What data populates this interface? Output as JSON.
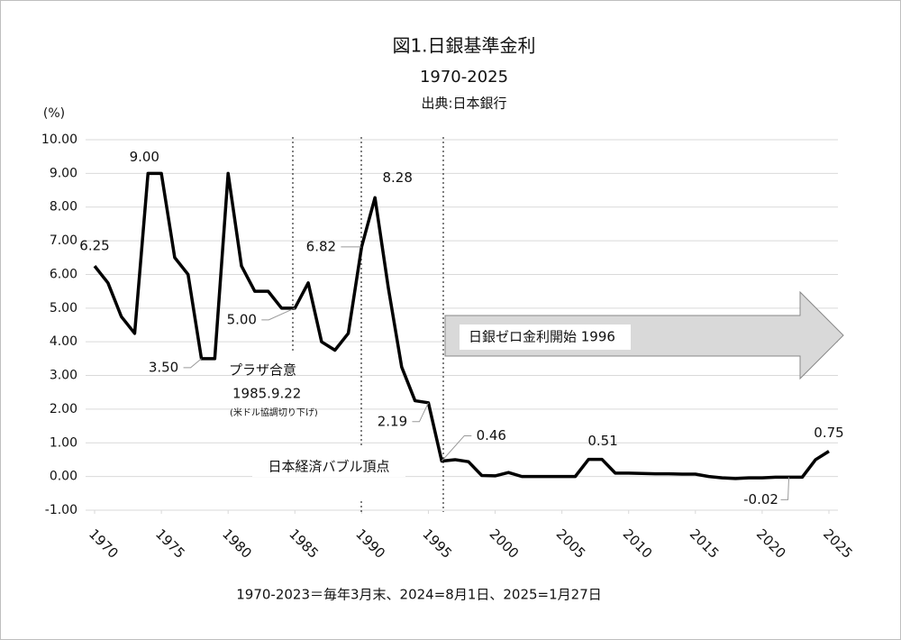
{
  "chart_data": {
    "type": "line",
    "title": "図1.日銀基準金利",
    "subtitle": "1970-2025",
    "source": "出典:日本銀行",
    "y_label": "(%)",
    "footnote": "1970-2023＝毎年3月末、2024=8月1日、2025=1月27日",
    "annotations": [
      "プラザ合意",
      "1985.9.22",
      "(米ドル協調切り下げ)",
      "日本経済バブル頂点",
      "日銀ゼロ金利開始 1996"
    ],
    "x": [
      1970,
      1971,
      1972,
      1973,
      1974,
      1975,
      1976,
      1977,
      1978,
      1979,
      1980,
      1981,
      1982,
      1983,
      1984,
      1985,
      1986,
      1987,
      1988,
      1989,
      1990,
      1991,
      1992,
      1993,
      1994,
      1995,
      1996,
      1997,
      1998,
      1999,
      2000,
      2001,
      2002,
      2003,
      2004,
      2005,
      2006,
      2007,
      2008,
      2009,
      2010,
      2011,
      2012,
      2013,
      2014,
      2015,
      2016,
      2017,
      2018,
      2019,
      2020,
      2021,
      2022,
      2023,
      2024,
      2025
    ],
    "series": [
      {
        "name": "日銀基準金利",
        "color": "#000000",
        "values": [
          6.25,
          5.75,
          4.75,
          4.25,
          9,
          9,
          6.5,
          6,
          3.5,
          3.5,
          9,
          6.25,
          5.5,
          5.5,
          5,
          5,
          5.75,
          4,
          3.75,
          4.25,
          6.82,
          8.28,
          5.6,
          3.25,
          2.25,
          2.19,
          0.46,
          0.5,
          0.44,
          0.03,
          0.02,
          0.12,
          0,
          0,
          0,
          0,
          0,
          0.51,
          0.51,
          0.1,
          0.1,
          0.09,
          0.08,
          0.08,
          0.07,
          0.07,
          0,
          -0.04,
          -0.06,
          -0.04,
          -0.04,
          -0.02,
          -0.02,
          -0.02,
          0.5,
          0.75
        ],
        "value_labels": [
          "6.25",
          null,
          null,
          null,
          "9.00",
          null,
          null,
          null,
          "3.50",
          null,
          null,
          null,
          null,
          null,
          null,
          "5.00",
          null,
          null,
          null,
          null,
          "6.82",
          "8.28",
          null,
          null,
          null,
          "2.19",
          "0.46",
          null,
          null,
          null,
          null,
          null,
          null,
          null,
          null,
          null,
          null,
          null,
          "0.51",
          null,
          null,
          null,
          null,
          null,
          null,
          null,
          null,
          null,
          null,
          null,
          null,
          null,
          "-0.02",
          null,
          null,
          "0.75"
        ]
      }
    ],
    "xlim": [
      1970,
      2025
    ],
    "xticks": [
      1970,
      1975,
      1980,
      1985,
      1990,
      1995,
      2000,
      2005,
      2010,
      2015,
      2020,
      2025
    ],
    "ylim": [
      -1,
      10
    ],
    "yticks": [
      {
        "value": -1,
        "label": "-1.00"
      },
      {
        "value": 0,
        "label": "0.00"
      },
      {
        "value": 1,
        "label": "1.00"
      },
      {
        "value": 2,
        "label": "2.00"
      },
      {
        "value": 3,
        "label": "3.00"
      },
      {
        "value": 4,
        "label": "4.00"
      },
      {
        "value": 5,
        "label": "5.00"
      },
      {
        "value": 6,
        "label": "6.00"
      },
      {
        "value": 7,
        "label": "7.00"
      },
      {
        "value": 8,
        "label": "8.00"
      },
      {
        "value": 9,
        "label": "9.00"
      },
      {
        "value": 10,
        "label": "10.00"
      }
    ],
    "grid": true
  }
}
